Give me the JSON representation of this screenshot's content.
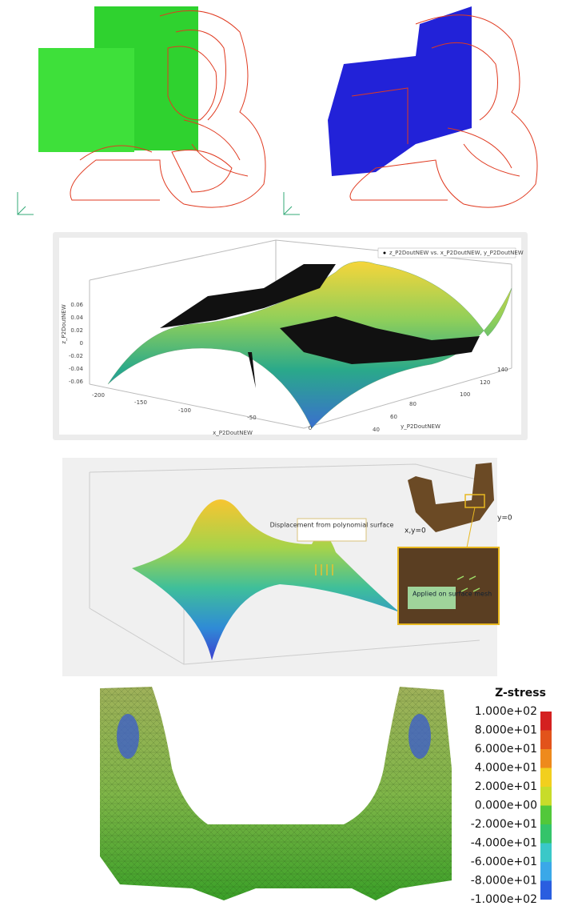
{
  "panel_plot": {
    "legend": "z_P2DoutNEW vs. x_P2DoutNEW, y_P2DoutNEW",
    "x_label": "x_P2DoutNEW",
    "y_label": "y_P2DoutNEW",
    "z_label": "z_P2DoutNEW",
    "z_ticks": [
      "0.06",
      "0.04",
      "0.02",
      "0",
      "-0.02",
      "-0.04",
      "-0.06"
    ],
    "x_ticks": [
      "-200",
      "-150",
      "-100",
      "-50",
      "0"
    ],
    "y_ticks": [
      "40",
      "60",
      "80",
      "100",
      "120",
      "140"
    ]
  },
  "panel_displacement": {
    "callout": "Displacement from polynomial surface",
    "label_xy": "x,y=0",
    "label_y": "y=0",
    "inset_callout": "Applied on surface mesh"
  },
  "panel_stress": {
    "title": "Z-stress",
    "scale": [
      "1.000e+02",
      "8.000e+01",
      "6.000e+01",
      "4.000e+01",
      "2.000e+01",
      "0.000e+00",
      "-2.000e+01",
      "-4.000e+01",
      "-6.000e+01",
      "-8.000e+01",
      "-1.000e+02"
    ]
  }
}
